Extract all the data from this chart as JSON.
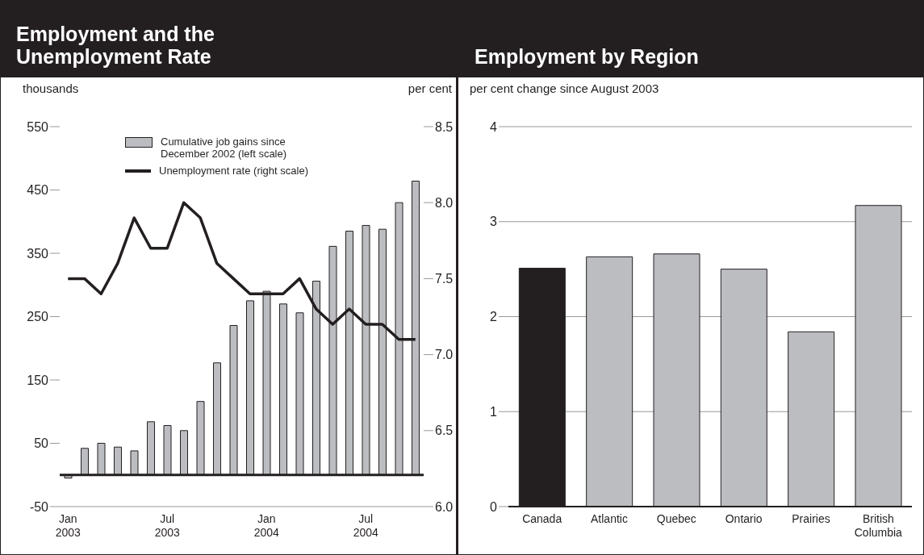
{
  "chart_data": [
    {
      "type": "bar",
      "title": "Employment and the Unemployment Rate",
      "ylabel": "thousands",
      "y2label": "per cent",
      "legend": "top",
      "categories": [
        "Jan 2003",
        null,
        null,
        null,
        null,
        null,
        "Jul 2003",
        null,
        null,
        null,
        null,
        null,
        "Jan 2004",
        null,
        null,
        null,
        null,
        null,
        "Jul 2004",
        null,
        null,
        null
      ],
      "series": [
        {
          "name": "Cumulative job gains since December 2002 (left scale)",
          "color": "#bcbdc1",
          "values": [
            -5,
            42,
            50,
            44,
            38,
            84,
            78,
            70,
            116,
            177,
            236,
            275,
            290,
            270,
            256,
            306,
            361,
            385,
            394,
            388,
            430,
            464
          ]
        },
        {
          "name": "Unemployment rate (right scale)",
          "type": "line",
          "axis": "y2",
          "color": "#231f20",
          "values": [
            7.5,
            7.5,
            7.4,
            7.6,
            7.9,
            7.7,
            7.7,
            8.0,
            7.9,
            7.6,
            7.5,
            7.4,
            7.4,
            7.4,
            7.5,
            7.3,
            7.2,
            7.3,
            7.2,
            7.2,
            7.1,
            7.1
          ]
        }
      ],
      "ylim": [
        -50,
        550
      ],
      "yticks": [
        -50,
        50,
        150,
        250,
        350,
        450,
        550
      ],
      "y2lim": [
        6,
        8.5
      ],
      "y2ticks": [
        {
          "value": 6,
          "label": "6.0"
        },
        6.5,
        {
          "value": 7,
          "label": "7.0"
        },
        7.5,
        {
          "value": 8,
          "label": "8.0"
        },
        8.5
      ],
      "ref_lines": [
        {
          "axis": "y",
          "value": 0,
          "color": "#231f20"
        }
      ]
    },
    {
      "type": "bar",
      "title": "Employment by Region",
      "ylabel": "per cent change since August 2003",
      "grid": "y",
      "categories": [
        "Canada",
        "Atlantic",
        "Quebec",
        "Ontario",
        "Prairies",
        "British Columbia"
      ],
      "values": [
        2.51,
        2.63,
        2.66,
        2.5,
        1.84,
        3.17
      ],
      "colors": [
        "#231f20",
        "#bcbdc1",
        "#bcbdc1",
        "#bcbdc1",
        "#bcbdc1",
        "#bcbdc1"
      ],
      "ylim": [
        0,
        4
      ],
      "yticks": [
        0,
        1,
        2,
        3,
        4
      ]
    }
  ]
}
